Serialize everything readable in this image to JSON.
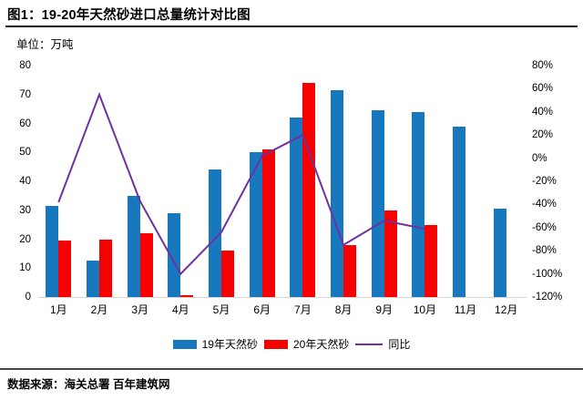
{
  "header": {
    "title": "图1：19-20年天然砂进口总量统计对比图",
    "unit_label": "单位：万吨"
  },
  "chart_data": {
    "type": "bar",
    "subtype": "combo-bar-line-dual-axis",
    "title": "图1：19-20年天然砂进口总量统计对比图",
    "ylabel": "单位：万吨",
    "categories": [
      "1月",
      "2月",
      "3月",
      "4月",
      "5月",
      "6月",
      "7月",
      "8月",
      "9月",
      "10月",
      "11月",
      "12月"
    ],
    "series": [
      {
        "name": "19年天然砂",
        "type": "bar",
        "axis": "left",
        "color": "#1878BE",
        "values": [
          31.5,
          12.5,
          35,
          29,
          44,
          50,
          62,
          71.5,
          64.5,
          64,
          59,
          30.5
        ]
      },
      {
        "name": "20年天然砂",
        "type": "bar",
        "axis": "left",
        "color": "#F70000",
        "values": [
          19.5,
          20,
          22,
          0.5,
          16,
          51,
          74,
          18,
          30,
          25,
          null,
          null
        ]
      },
      {
        "name": "同比",
        "type": "line",
        "axis": "right",
        "color": "#7030A0",
        "unit": "%",
        "values": [
          -38,
          55,
          -37,
          -100,
          -64,
          2,
          20,
          -75,
          -54,
          -61,
          null,
          null
        ]
      }
    ],
    "left_axis": {
      "min": 0,
      "max": 80,
      "step": 10,
      "ticks_bottom_up": [
        "0",
        "10",
        "20",
        "30",
        "40",
        "50",
        "60",
        "70",
        "80"
      ]
    },
    "right_axis": {
      "min": -120,
      "max": 80,
      "step": 20,
      "ticks_top_down": [
        "80%",
        "60%",
        "40%",
        "20%",
        "0%",
        "-20%",
        "-40%",
        "-60%",
        "-80%",
        "-100%",
        "-120%"
      ]
    },
    "grid": false,
    "legend_position": "bottom",
    "legend": [
      "19年天然砂",
      "20年天然砂",
      "同比"
    ]
  },
  "footer": {
    "source_label": "数据来源：海关总署 百年建筑网"
  }
}
